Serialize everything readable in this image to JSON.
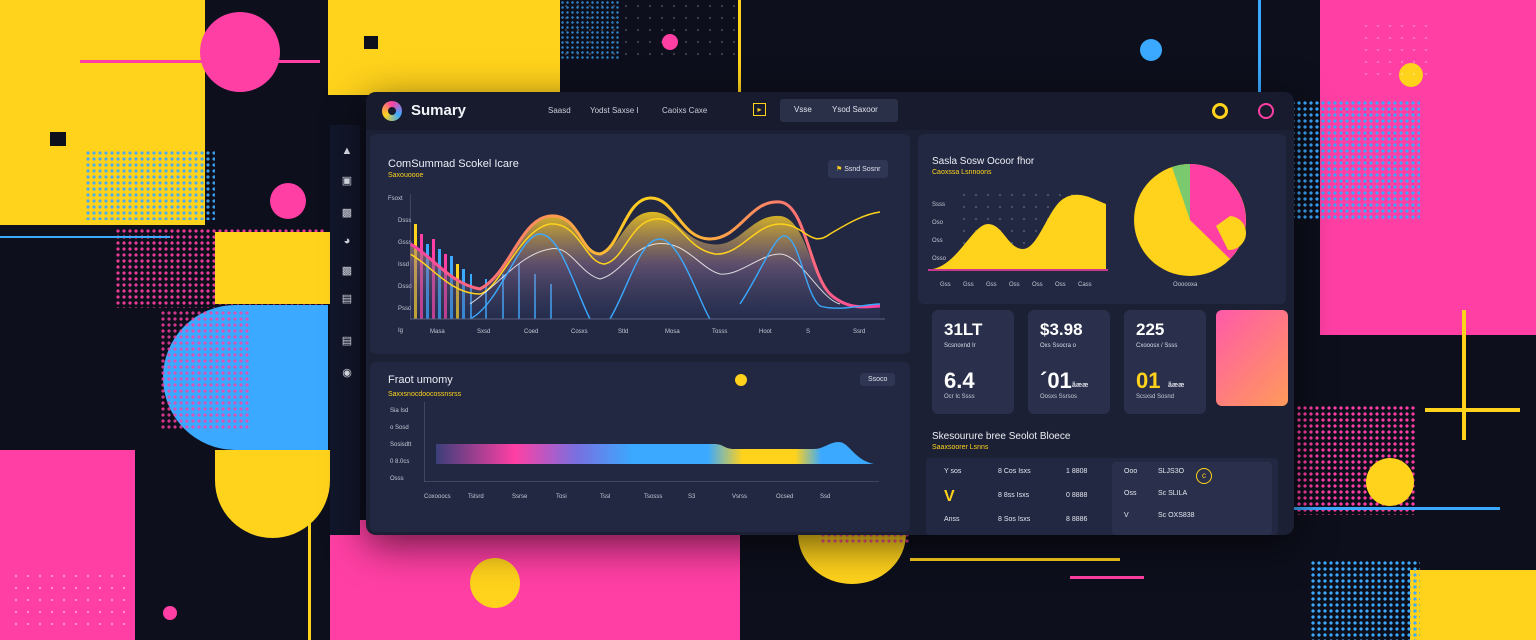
{
  "app": {
    "title": "Sumary"
  },
  "header": {
    "nav": [
      "Saasd",
      "Yodst Saxse I",
      "Caoixs Caxe"
    ],
    "search_left": "Vsse",
    "search_right": "Ysod Saxoor"
  },
  "main_chart": {
    "title": "ComSummad Scokel Icare",
    "subtitle": "Saxouoooe",
    "button": "Ssnd Sosnr",
    "ylabels": [
      "Fsoxt",
      "Dsss",
      "Gsss",
      "Issd",
      "Dssd",
      "Pssd",
      "Ig"
    ],
    "xlabels": [
      "Masa",
      "Sxsd",
      "Coed",
      "Cosxs",
      "Stld",
      "Mosa",
      "Tosss",
      "Hoot",
      "S",
      "Ssrd"
    ]
  },
  "front_summary": {
    "title": "Fraot umomy",
    "subtitle": "Saxxsnocdoocossnsrss",
    "button": "Ssoco",
    "ylabels": [
      "Sia Isd",
      "o Sosd",
      "Sosisdtt",
      "0 8.0cs",
      "Osss"
    ],
    "xlabels": [
      "Coxooocs",
      "Tslsrd",
      "Ssrse",
      "Tosi",
      "Tssl",
      "Tsosss",
      "S3",
      "Vsrss",
      "Ocsed",
      "Ssd"
    ]
  },
  "pie_panel": {
    "title": "Sasla Sosw Ocoor fhor",
    "subtitle": "Caoxssa Lsnnoons",
    "ylabels": [
      "Ssss",
      "Oso",
      "Oss",
      "Osso"
    ],
    "xlabels": [
      "Gss",
      "Gss",
      "Gss",
      "Oss",
      "Oss",
      "Oss",
      "Cass"
    ],
    "pie_label": "Oooooxa"
  },
  "stats": [
    {
      "value": "31LT",
      "label": "Scsnoxnd Ir",
      "big": "6.4",
      "big_suffix": "",
      "foot": "Ocr Ic Ssss"
    },
    {
      "value": "$3.98",
      "label": "Oxs Ssocra o",
      "big": "´01",
      "big_suffix": "ãææ",
      "foot": "Oosxs Ssrsos"
    },
    {
      "value": "225",
      "label": "Cxooosx / Ssss",
      "big": "01",
      "big_suffix": "ãææ",
      "foot": "Scsxsd Sosnd"
    }
  ],
  "table": {
    "title": "Skesourure bree Seolot Bloece",
    "subtitle": "Saaxsoorer Lsnns",
    "left_rows": [
      {
        "c1": "Y  sos",
        "c2": "8 Cos Isxs",
        "c3": "1 8808"
      },
      {
        "c1": "V",
        "c2": "8 8ss Isxs",
        "c3": "0 8888"
      },
      {
        "c1": "Anss",
        "c2": "8 Sos Isxs",
        "c3": "8 8886"
      }
    ],
    "right_rows": [
      {
        "c1": "Ooo",
        "c2": "SLJS3O"
      },
      {
        "c1": "Oss",
        "c2": "Sc SLILA"
      },
      {
        "c1": "V",
        "c2": "Sc OXS838"
      }
    ]
  },
  "colors": {
    "pink": "#ff3fa4",
    "yellow": "#ffd21c",
    "blue": "#3aa9ff",
    "panel": "#222842",
    "bg": "#0d0f1c"
  }
}
